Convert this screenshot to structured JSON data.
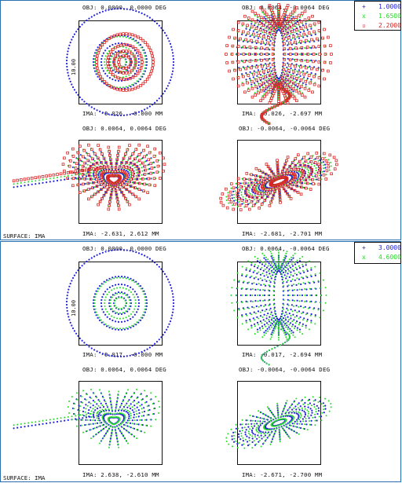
{
  "chart_data": [
    {
      "type": "scatter",
      "panel": "top",
      "surface_label": "SURFACE: IMA",
      "scale_label": "10.00",
      "legend": [
        {
          "label": "1.0000",
          "color": "#2222dd",
          "marker": "+"
        },
        {
          "label": "1.6500",
          "color": "#22dd22",
          "marker": "x"
        },
        {
          "label": "2.2000",
          "color": "#dd2222",
          "marker": "square"
        }
      ],
      "fields": [
        {
          "obj": "OBJ: 0.0000, 0.0000 DEG",
          "ima": "IMA: -0.026, -0.000 MM",
          "pattern": "rings"
        },
        {
          "obj": "OBJ: 0.0064, -0.0064 DEG",
          "ima": "IMA: -0.026, -2.697 MM",
          "pattern": "spindle"
        },
        {
          "obj": "OBJ: 0.0064, 0.0064 DEG",
          "ima": "IMA: -2.631, 2.612 MM",
          "pattern": "coma-left"
        },
        {
          "obj": "OBJ: -0.0064, -0.0064 DEG",
          "ima": "IMA: -2.681, -2.701 MM",
          "pattern": "ellipse-tilt"
        }
      ]
    },
    {
      "type": "scatter",
      "panel": "bottom",
      "surface_label": "SURFACE: IMA",
      "scale_label": "10.00",
      "legend": [
        {
          "label": "3.0000",
          "color": "#2222dd",
          "marker": "+"
        },
        {
          "label": "4.6000",
          "color": "#22dd22",
          "marker": "x"
        }
      ],
      "fields": [
        {
          "obj": "OBJ: 0.0000, 0.0000 DEG",
          "ima": "IMA: -0.017, -0.000 MM",
          "pattern": "rings"
        },
        {
          "obj": "OBJ: 0.0064, -0.0064 DEG",
          "ima": "IMA: -0.017, -2.694 MM",
          "pattern": "spindle"
        },
        {
          "obj": "OBJ: 0.0064, 0.0064 DEG",
          "ima": "IMA: 2.638, -2.610 MM",
          "pattern": "coma-left"
        },
        {
          "obj": "OBJ: -0.0064, -0.0064 DEG",
          "ima": "IMA: -2.671, -2.700 MM",
          "pattern": "ellipse-tilt"
        }
      ]
    }
  ]
}
